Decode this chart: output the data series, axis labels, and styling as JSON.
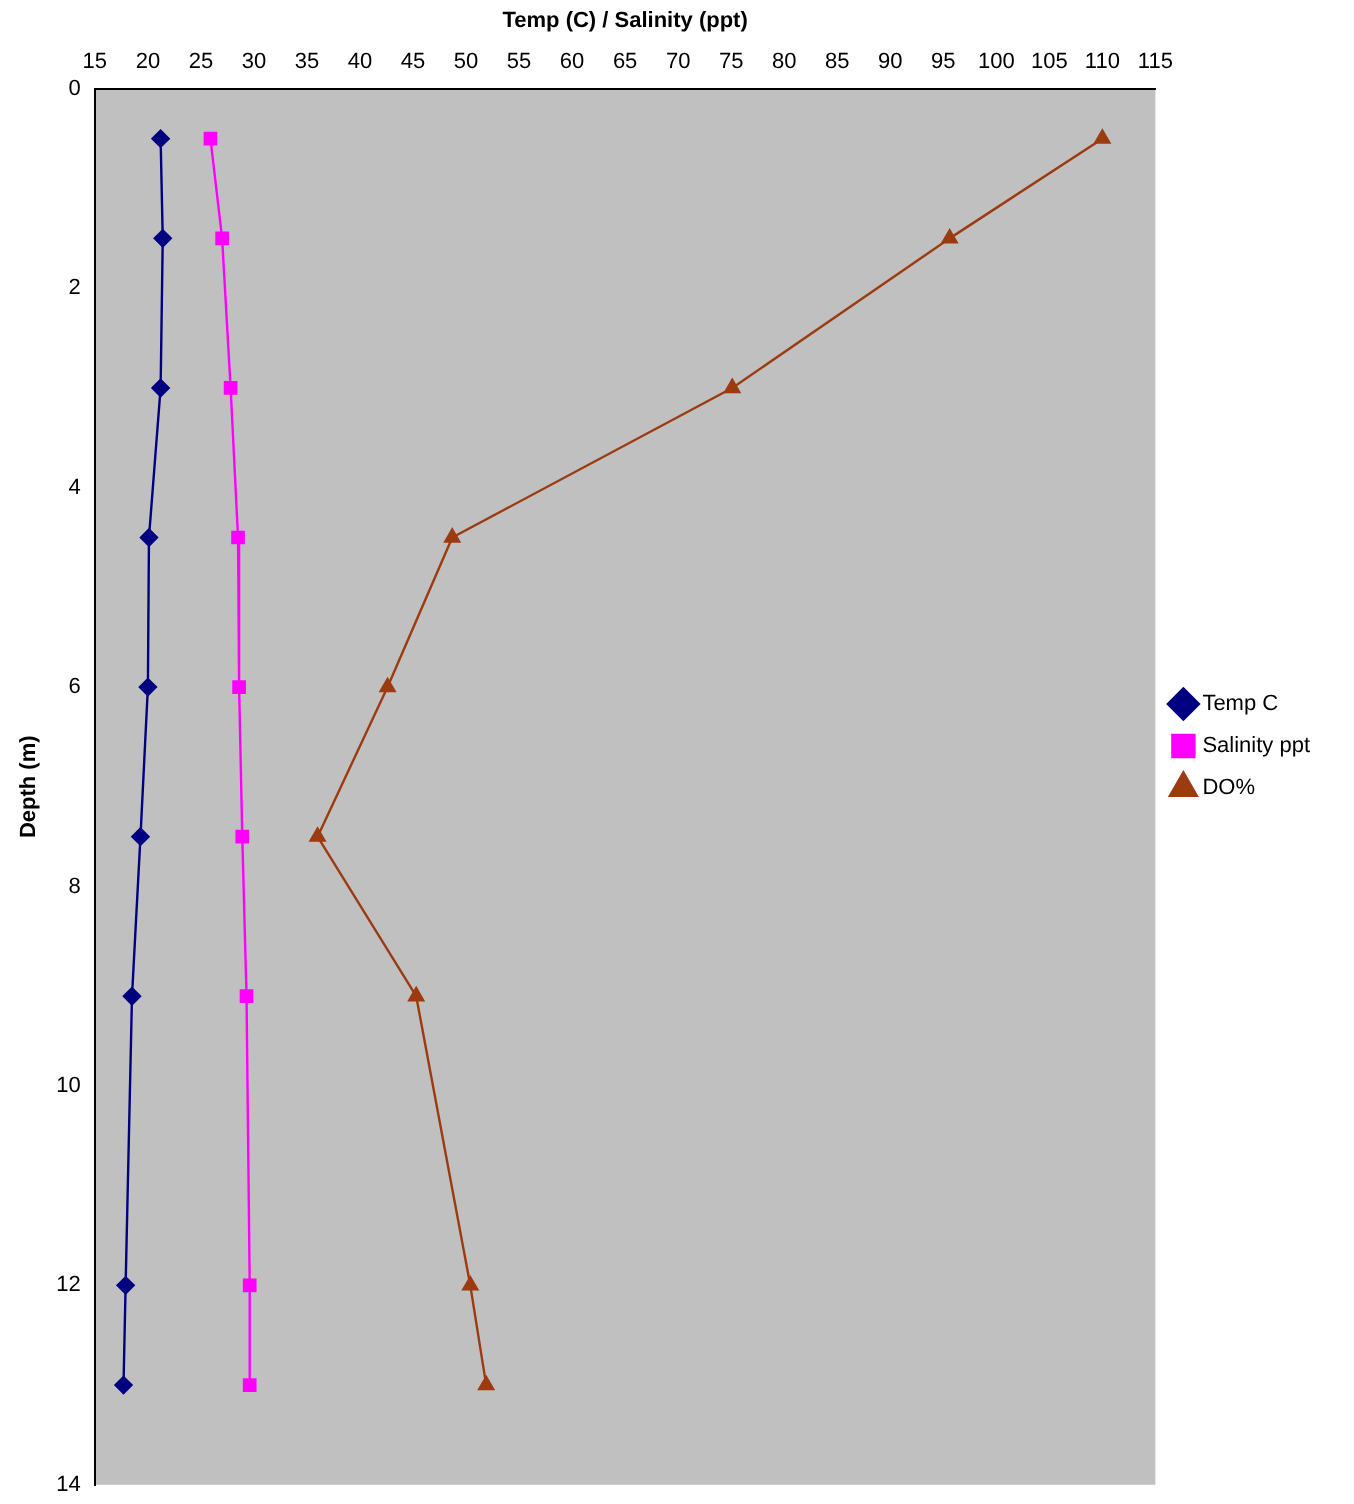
{
  "chart_data": {
    "type": "line",
    "xlabel": "Temp (C) / Salinity (ppt)",
    "ylabel": "Depth (m)",
    "xlim": [
      15,
      115
    ],
    "xticks": [
      15,
      20,
      25,
      30,
      35,
      40,
      45,
      50,
      55,
      60,
      65,
      70,
      75,
      80,
      85,
      90,
      95,
      100,
      105,
      110,
      115
    ],
    "ylim": [
      14,
      0
    ],
    "yticks": [
      0,
      2,
      4,
      6,
      8,
      10,
      12,
      14
    ],
    "grid": false,
    "legend": "right",
    "series": [
      {
        "name": "Temp C",
        "color": "#000080",
        "marker": "diamond",
        "x": [
          21.2,
          21.4,
          21.2,
          20.1,
          20.0,
          19.3,
          18.5,
          17.9,
          17.7
        ],
        "values": [
          0.5,
          1.5,
          3,
          4.5,
          6,
          7.5,
          9.1,
          12,
          13
        ]
      },
      {
        "name": "Salinity ppt",
        "color": "#ff00ff",
        "marker": "square",
        "x": [
          25.9,
          27.0,
          27.8,
          28.5,
          28.6,
          28.9,
          29.3,
          29.6,
          29.6
        ],
        "values": [
          0.5,
          1.5,
          3,
          4.5,
          6,
          7.5,
          9.1,
          12,
          13
        ]
      },
      {
        "name": "DO%",
        "color": "#9c3a10",
        "marker": "triangle",
        "x": [
          110,
          95.6,
          75.1,
          48.7,
          42.6,
          36,
          45.3,
          50.4,
          51.9
        ],
        "values": [
          0.5,
          1.5,
          3,
          4.5,
          6,
          7.5,
          9.1,
          12,
          13
        ]
      }
    ]
  }
}
